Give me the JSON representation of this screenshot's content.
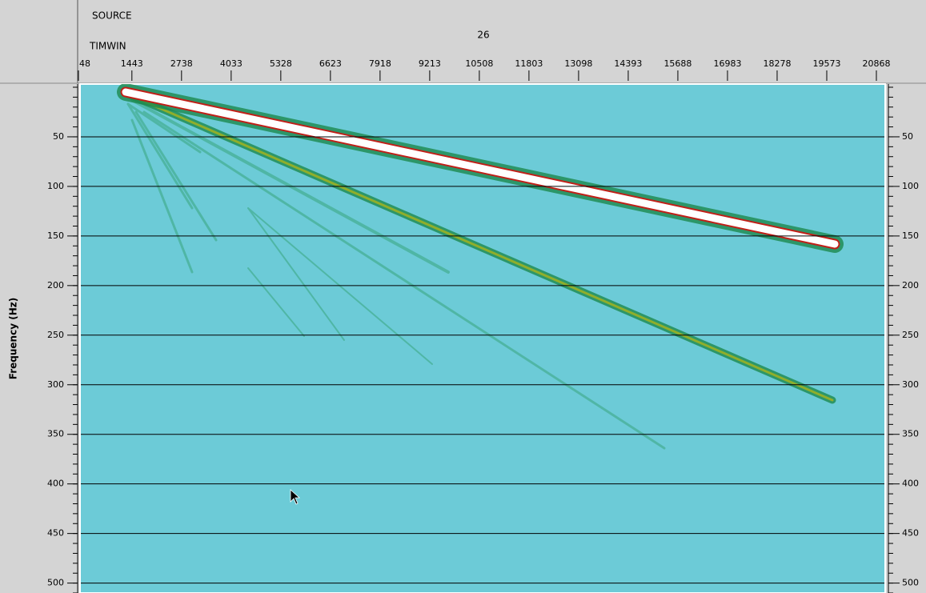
{
  "header": {
    "source_label": "SOURCE",
    "source_value": "26",
    "x_label": "TIMWIN"
  },
  "x_axis": {
    "range": [
      48,
      20868
    ],
    "ticks": [
      48,
      1443,
      2738,
      4033,
      5328,
      6623,
      7918,
      9213,
      10508,
      11803,
      13098,
      14393,
      15688,
      16983,
      18278,
      19573,
      20868
    ]
  },
  "y_axis": {
    "label": "Frequency (Hz)",
    "range": [
      0,
      510
    ],
    "ticks": [
      50,
      100,
      150,
      200,
      250,
      300,
      350,
      400,
      450,
      500
    ]
  }
}
